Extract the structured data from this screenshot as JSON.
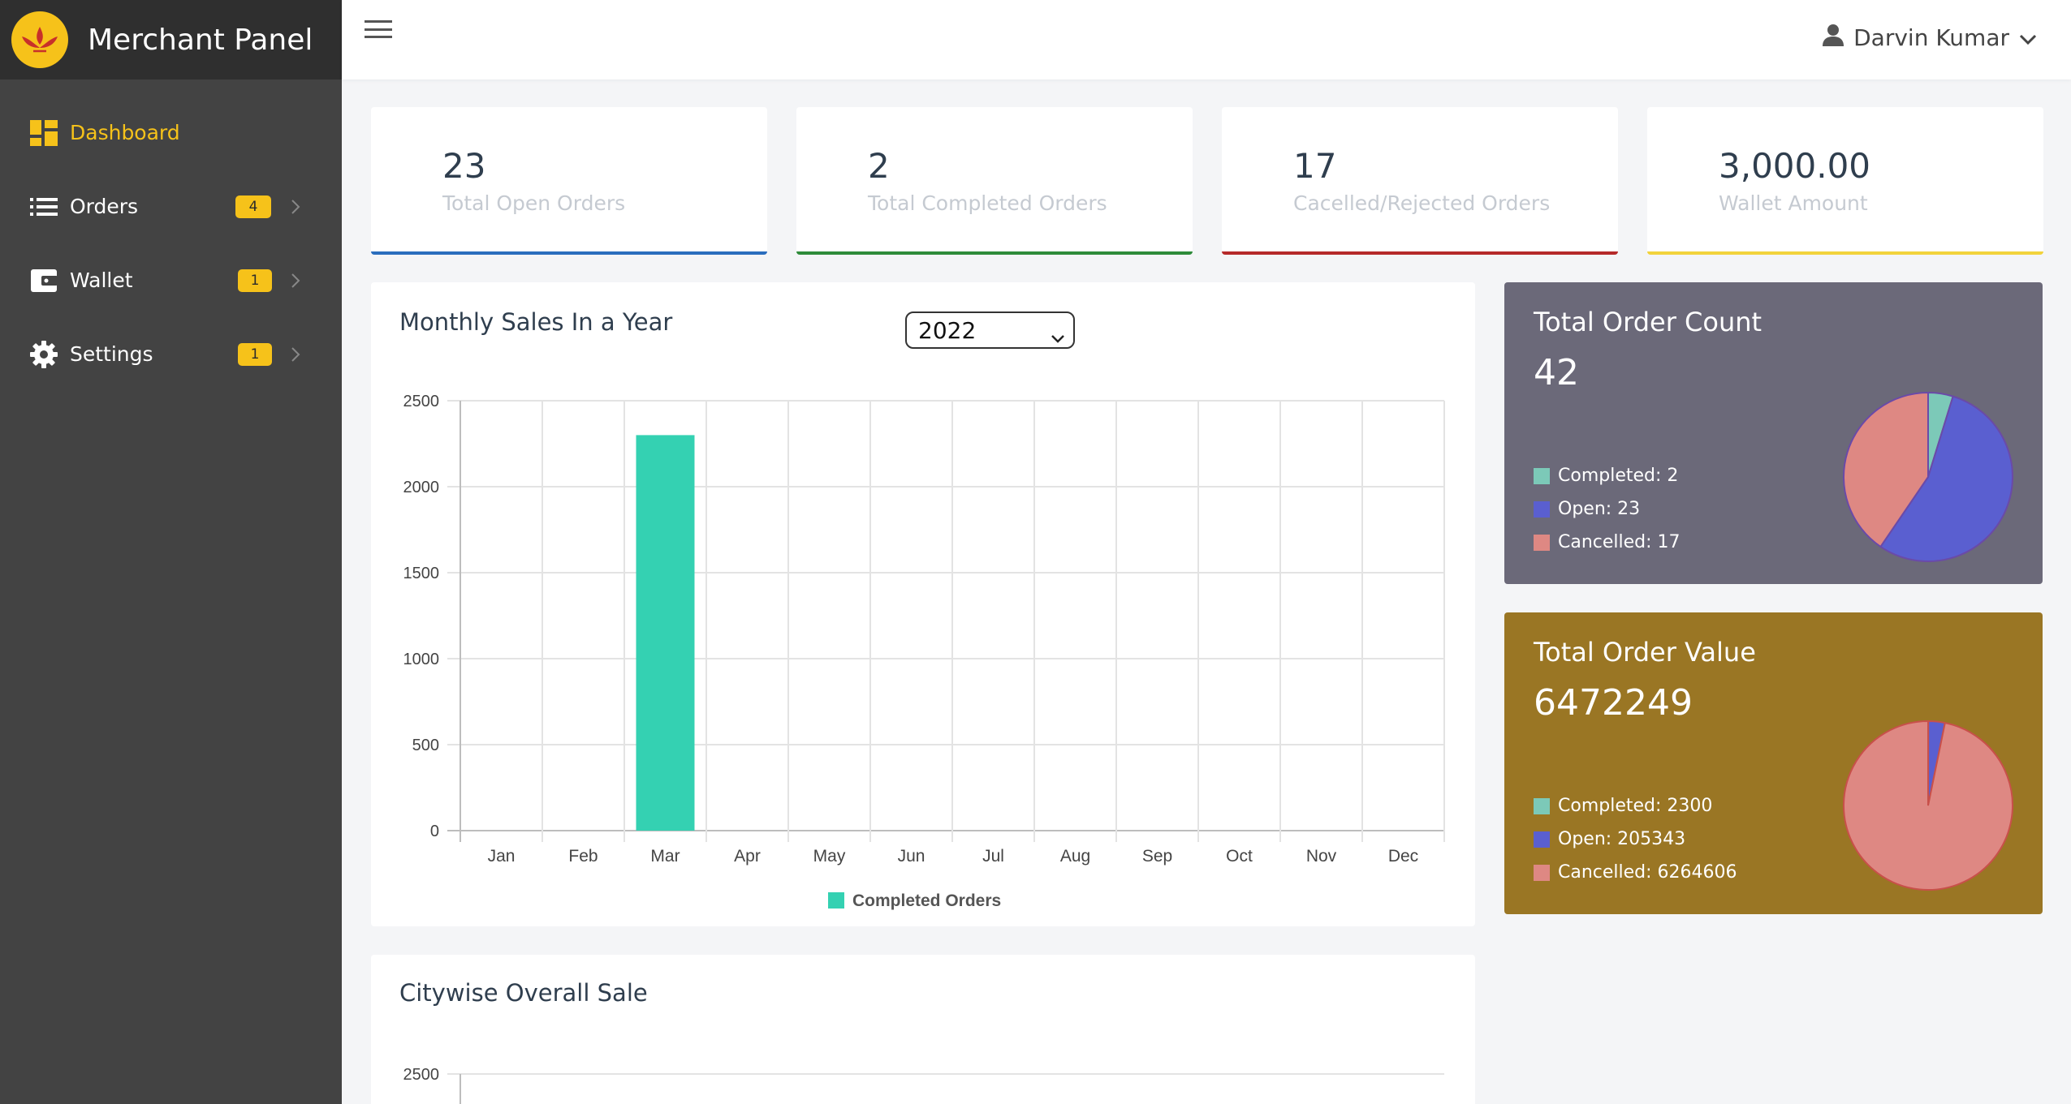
{
  "brand": {
    "title": "Merchant Panel"
  },
  "sidebar": {
    "items": [
      {
        "label": "Dashboard",
        "icon": "dashboard-icon",
        "active": true
      },
      {
        "label": "Orders",
        "icon": "list-icon",
        "badge": "4"
      },
      {
        "label": "Wallet",
        "icon": "wallet-icon",
        "badge": "1"
      },
      {
        "label": "Settings",
        "icon": "gear-icon",
        "badge": "1"
      }
    ]
  },
  "topbar": {
    "user_name": "Darvin Kumar"
  },
  "stats": [
    {
      "value": "23",
      "label": "Total Open Orders",
      "color": "#2a6dbd"
    },
    {
      "value": "2",
      "label": "Total Completed Orders",
      "color": "#2e8b3a"
    },
    {
      "value": "17",
      "label": "Cacelled/Rejected Orders",
      "color": "#b52a2a"
    },
    {
      "value": "3,000.00",
      "label": "Wallet Amount",
      "color": "#f2d33c"
    }
  ],
  "monthly": {
    "title": "Monthly Sales In a Year",
    "year": "2022"
  },
  "citywise": {
    "title": "Citywise Overall Sale"
  },
  "order_count": {
    "title": "Total Order Count",
    "value": "42",
    "legend": [
      "Completed: 2",
      "Open: 23",
      "Cancelled: 17"
    ]
  },
  "order_value": {
    "title": "Total Order Value",
    "value": "6472249",
    "legend": [
      "Completed: 2300",
      "Open: 205343",
      "Cancelled: 6264606"
    ]
  },
  "colors": {
    "accent": "#f6c21a",
    "bar": "#34d1b2",
    "completed": "#7cc9b8",
    "open": "#5a5fd0",
    "cancelled": "#de8883",
    "count_card": "#6b6979",
    "value_card": "#9a7624"
  },
  "chart_data": [
    {
      "type": "bar",
      "categories": [
        "Jan",
        "Feb",
        "Mar",
        "Apr",
        "May",
        "Jun",
        "Jul",
        "Aug",
        "Sep",
        "Oct",
        "Nov",
        "Dec"
      ],
      "series": [
        {
          "name": "Completed Orders",
          "values": [
            0,
            0,
            2300,
            0,
            0,
            0,
            0,
            0,
            0,
            0,
            0,
            0
          ]
        }
      ],
      "yticks": [
        "0",
        "500",
        "1000",
        "1500",
        "2000",
        "2500"
      ],
      "ylim": [
        0,
        2500
      ],
      "grid": true,
      "legend": "bottom"
    },
    {
      "type": "pie",
      "labels": [
        "Completed",
        "Open",
        "Cancelled"
      ],
      "values": [
        2,
        23,
        17
      ]
    },
    {
      "type": "pie",
      "labels": [
        "Completed",
        "Open",
        "Cancelled"
      ],
      "values": [
        2300,
        205343,
        6264606
      ]
    },
    {
      "type": "bar",
      "yticks": [
        "2500"
      ]
    }
  ]
}
